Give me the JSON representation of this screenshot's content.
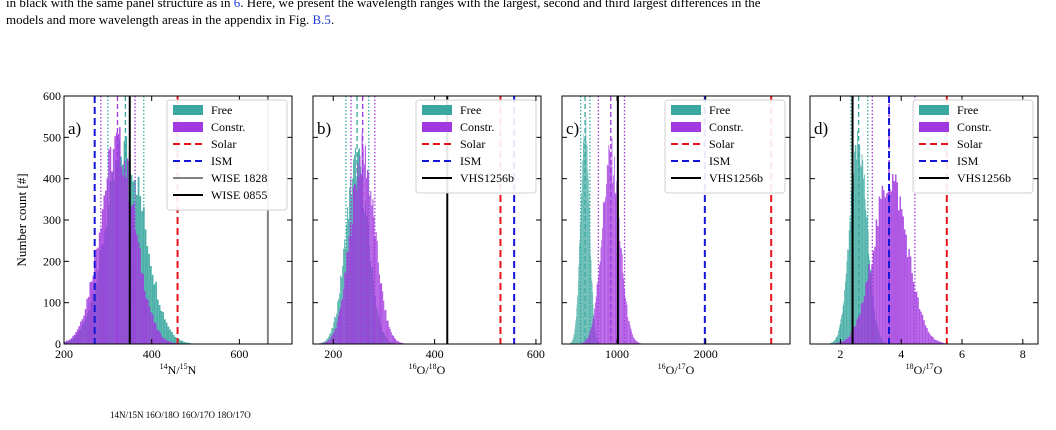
{
  "caption": {
    "line1": "in black with the same panel structure as in ",
    "ref1": "6",
    "line1_end": ". Here, we present the wavelength ranges with the largest, second and third largest differences in the",
    "line2": "models and more wavelength areas in the appendix in Fig. ",
    "ref2": "B.5",
    "line2_end": "."
  },
  "footer_fragment": "14N/15N   16O/18O   16O/17O   18O/17O",
  "colors": {
    "free": "#3aa8a0",
    "constr": "#a238e0",
    "solar": "#e8141a",
    "ism": "#1515d8",
    "wise1828": "#808080",
    "wise0855": "#000000",
    "vhs": "#000000"
  },
  "shared": {
    "ylabel": "Number count [#]",
    "legend_position": "top-right"
  },
  "chart_data": [
    {
      "type": "histogram",
      "panel_label": "a)",
      "xlabel_sup1": "14",
      "xlabel_base1": "N/",
      "xlabel_sup2": "15",
      "xlabel_base2": "N",
      "xlim": [
        200,
        720
      ],
      "ylim": [
        0,
        600
      ],
      "xticks": [
        200,
        400,
        600
      ],
      "yticks": [
        0,
        100,
        200,
        300,
        400,
        500,
        600
      ],
      "free": {
        "mean": 340,
        "sd": 45,
        "peak": 470,
        "median": 340,
        "p16": 300,
        "p84": 382
      },
      "constr": {
        "mean": 322,
        "sd": 40,
        "peak": 480,
        "median": 322,
        "p16": 284,
        "p84": 362
      },
      "refs": [
        {
          "name": "Solar",
          "value": 459,
          "style": "solar"
        },
        {
          "name": "ISM",
          "value": 270,
          "style": "ism"
        },
        {
          "name": "WISE 1828",
          "value": 665,
          "style": "wise1828"
        },
        {
          "name": "WISE 0855",
          "value": 350,
          "style": "wise0855"
        }
      ],
      "legend": [
        "Free",
        "Constr.",
        "Solar",
        "ISM",
        "WISE 1828",
        "WISE 0855"
      ]
    },
    {
      "type": "histogram",
      "panel_label": "b)",
      "xlabel_sup1": "16",
      "xlabel_base1": "O/",
      "xlabel_sup2": "18",
      "xlabel_base2": "O",
      "xlim": [
        160,
        610
      ],
      "ylim": [
        0,
        600
      ],
      "xticks": [
        200,
        400,
        600
      ],
      "yticks": [
        0,
        100,
        200,
        300,
        400,
        500,
        600
      ],
      "free": {
        "mean": 247,
        "sd": 22,
        "peak": 440,
        "median": 247,
        "p16": 225,
        "p84": 270
      },
      "constr": {
        "mean": 258,
        "sd": 24,
        "peak": 460,
        "median": 258,
        "p16": 235,
        "p84": 282
      },
      "refs": [
        {
          "name": "Solar",
          "value": 530,
          "style": "solar"
        },
        {
          "name": "ISM",
          "value": 557,
          "style": "ism"
        },
        {
          "name": "VHS1256b",
          "value": 425,
          "style": "vhs"
        }
      ],
      "legend": [
        "Free",
        "Constr.",
        "Solar",
        "ISM",
        "VHS1256b"
      ]
    },
    {
      "type": "histogram",
      "panel_label": "c)",
      "xlabel_sup1": "16",
      "xlabel_base1": "O/",
      "xlabel_sup2": "17",
      "xlabel_base2": "O",
      "xlim": [
        380,
        2950
      ],
      "ylim": [
        0,
        600
      ],
      "xticks": [
        1000,
        2000
      ],
      "yticks": [
        0,
        100,
        200,
        300,
        400,
        500,
        600
      ],
      "free": {
        "mean": 640,
        "sd": 50,
        "peak": 510,
        "median": 640,
        "p16": 590,
        "p84": 695
      },
      "constr": {
        "mean": 930,
        "sd": 100,
        "peak": 450,
        "median": 930,
        "p16": 790,
        "p84": 1085
      },
      "refs": [
        {
          "name": "Solar",
          "value": 2738,
          "style": "solar"
        },
        {
          "name": "ISM",
          "value": 1990,
          "style": "ism"
        },
        {
          "name": "VHS1256b",
          "value": 1010,
          "style": "vhs"
        }
      ],
      "legend": [
        "Free",
        "Constr.",
        "Solar",
        "ISM",
        "VHS1256b"
      ]
    },
    {
      "type": "histogram",
      "panel_label": "d)",
      "xlabel_sup1": "18",
      "xlabel_base1": "O/",
      "xlabel_sup2": "17",
      "xlabel_base2": "O",
      "xlim": [
        1.0,
        8.5
      ],
      "ylim": [
        0,
        600
      ],
      "xticks": [
        2,
        4,
        6,
        8
      ],
      "yticks": [
        0,
        100,
        200,
        300,
        400,
        500,
        600
      ],
      "free": {
        "mean": 2.6,
        "sd": 0.28,
        "peak": 480,
        "median": 2.6,
        "p16": 2.35,
        "p84": 2.9
      },
      "constr": {
        "mean": 3.65,
        "sd": 0.55,
        "peak": 400,
        "median": 3.6,
        "p16": 3.05,
        "p84": 4.45
      },
      "refs": [
        {
          "name": "Solar",
          "value": 5.5,
          "style": "solar"
        },
        {
          "name": "ISM",
          "value": 3.6,
          "style": "ism"
        },
        {
          "name": "VHS1256b",
          "value": 2.4,
          "style": "vhs"
        }
      ],
      "legend": [
        "Free",
        "Constr.",
        "Solar",
        "ISM",
        "VHS1256b"
      ]
    }
  ]
}
